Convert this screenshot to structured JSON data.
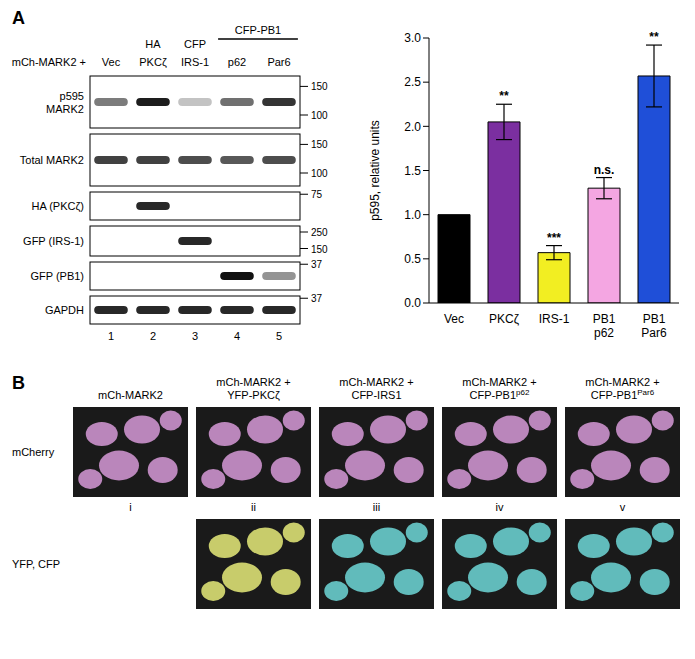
{
  "panel_a": "A",
  "panel_b": "B",
  "blot": {
    "header": {
      "row_label": "mCh-MARK2 +",
      "lanes": [
        {
          "top": null,
          "bottom": "Vec"
        },
        {
          "top": "HA",
          "bottom": "PKCζ"
        },
        {
          "top": "CFP",
          "bottom": "IRS-1"
        },
        {
          "top": null,
          "bottom": "p62"
        },
        {
          "top": null,
          "bottom": "Par6"
        }
      ],
      "group": {
        "label": "CFP-PB1",
        "lanes": [
          4,
          5
        ]
      }
    },
    "rows": [
      {
        "label_lines": [
          "p595",
          "MARK2"
        ],
        "markers": [
          150,
          100
        ],
        "bands": [
          0.55,
          0.95,
          0.25,
          0.6,
          0.85
        ]
      },
      {
        "label_lines": [
          "Total MARK2"
        ],
        "markers": [
          150,
          100
        ],
        "bands": [
          0.8,
          0.8,
          0.75,
          0.7,
          0.75
        ]
      },
      {
        "label_lines": [
          "HA (PKCζ)"
        ],
        "markers": [
          75
        ],
        "bands": [
          0,
          0.9,
          0,
          0,
          0
        ]
      },
      {
        "label_lines": [
          "GFP (IRS-1)"
        ],
        "markers": [
          250,
          150
        ],
        "bands": [
          0,
          0,
          0.9,
          0,
          0
        ]
      },
      {
        "label_lines": [
          "GFP (PB1)"
        ],
        "markers": [
          37
        ],
        "bands": [
          0,
          0,
          0,
          1,
          0.45
        ]
      },
      {
        "label_lines": [
          "GAPDH"
        ],
        "markers": [
          37
        ],
        "bands": [
          0.9,
          0.9,
          0.9,
          0.9,
          0.9
        ]
      }
    ],
    "lane_numbers": [
      1,
      2,
      3,
      4,
      5
    ]
  },
  "chart_data": {
    "type": "bar",
    "y_label": "p595, relative units",
    "categories": [
      "Vec",
      "PKCζ",
      "IRS-1",
      "PB1 p62",
      "PB1 Par6"
    ],
    "values": [
      1.0,
      2.05,
      0.57,
      1.3,
      2.57
    ],
    "errors": [
      null,
      0.2,
      0.08,
      0.12,
      0.35
    ],
    "significance": [
      null,
      "**",
      "***",
      "n.s.",
      "**"
    ],
    "colors": [
      "#000000",
      "#7b2fa0",
      "#f2ee22",
      "#f4a6e2",
      "#1f4fd8"
    ],
    "ylim": [
      0,
      3
    ],
    "yticks": [
      {
        "value": 0,
        "label": "0.0"
      },
      {
        "value": 0.5,
        "label": "0.5"
      },
      {
        "value": 1,
        "label": "1.0"
      },
      {
        "value": 1.5,
        "label": "1.5"
      },
      {
        "value": 2,
        "label": "2.0"
      },
      {
        "value": 2.5,
        "label": "2.5"
      },
      {
        "value": 3,
        "label": "3.0"
      }
    ],
    "grid": false
  },
  "microscopy": {
    "row_labels": [
      "mCherry",
      "YFP, CFP"
    ],
    "columns": [
      {
        "lines": [
          "mCh-MARK2"
        ],
        "sup": null,
        "numeral": "i",
        "colors": [
          "#d79ad8"
        ]
      },
      {
        "lines": [
          "mCh-MARK2 +",
          "YFP-PKCζ"
        ],
        "sup": null,
        "numeral": "ii",
        "colors": [
          "#d79ad8",
          "#e8ec7a"
        ]
      },
      {
        "lines": [
          "mCh-MARK2 +",
          "CFP-IRS1"
        ],
        "sup": null,
        "numeral": "iii",
        "colors": [
          "#d79ad8",
          "#6fd8d8"
        ]
      },
      {
        "lines": [
          "mCh-MARK2 +",
          "CFP-PB1"
        ],
        "sup": "p62",
        "numeral": "iv",
        "colors": [
          "#d79ad8",
          "#6fd8d8"
        ]
      },
      {
        "lines": [
          "mCh-MARK2 +",
          "CFP-PB1"
        ],
        "sup": "Par6",
        "numeral": "v",
        "colors": [
          "#d79ad8",
          "#6fd8d8"
        ]
      }
    ]
  }
}
